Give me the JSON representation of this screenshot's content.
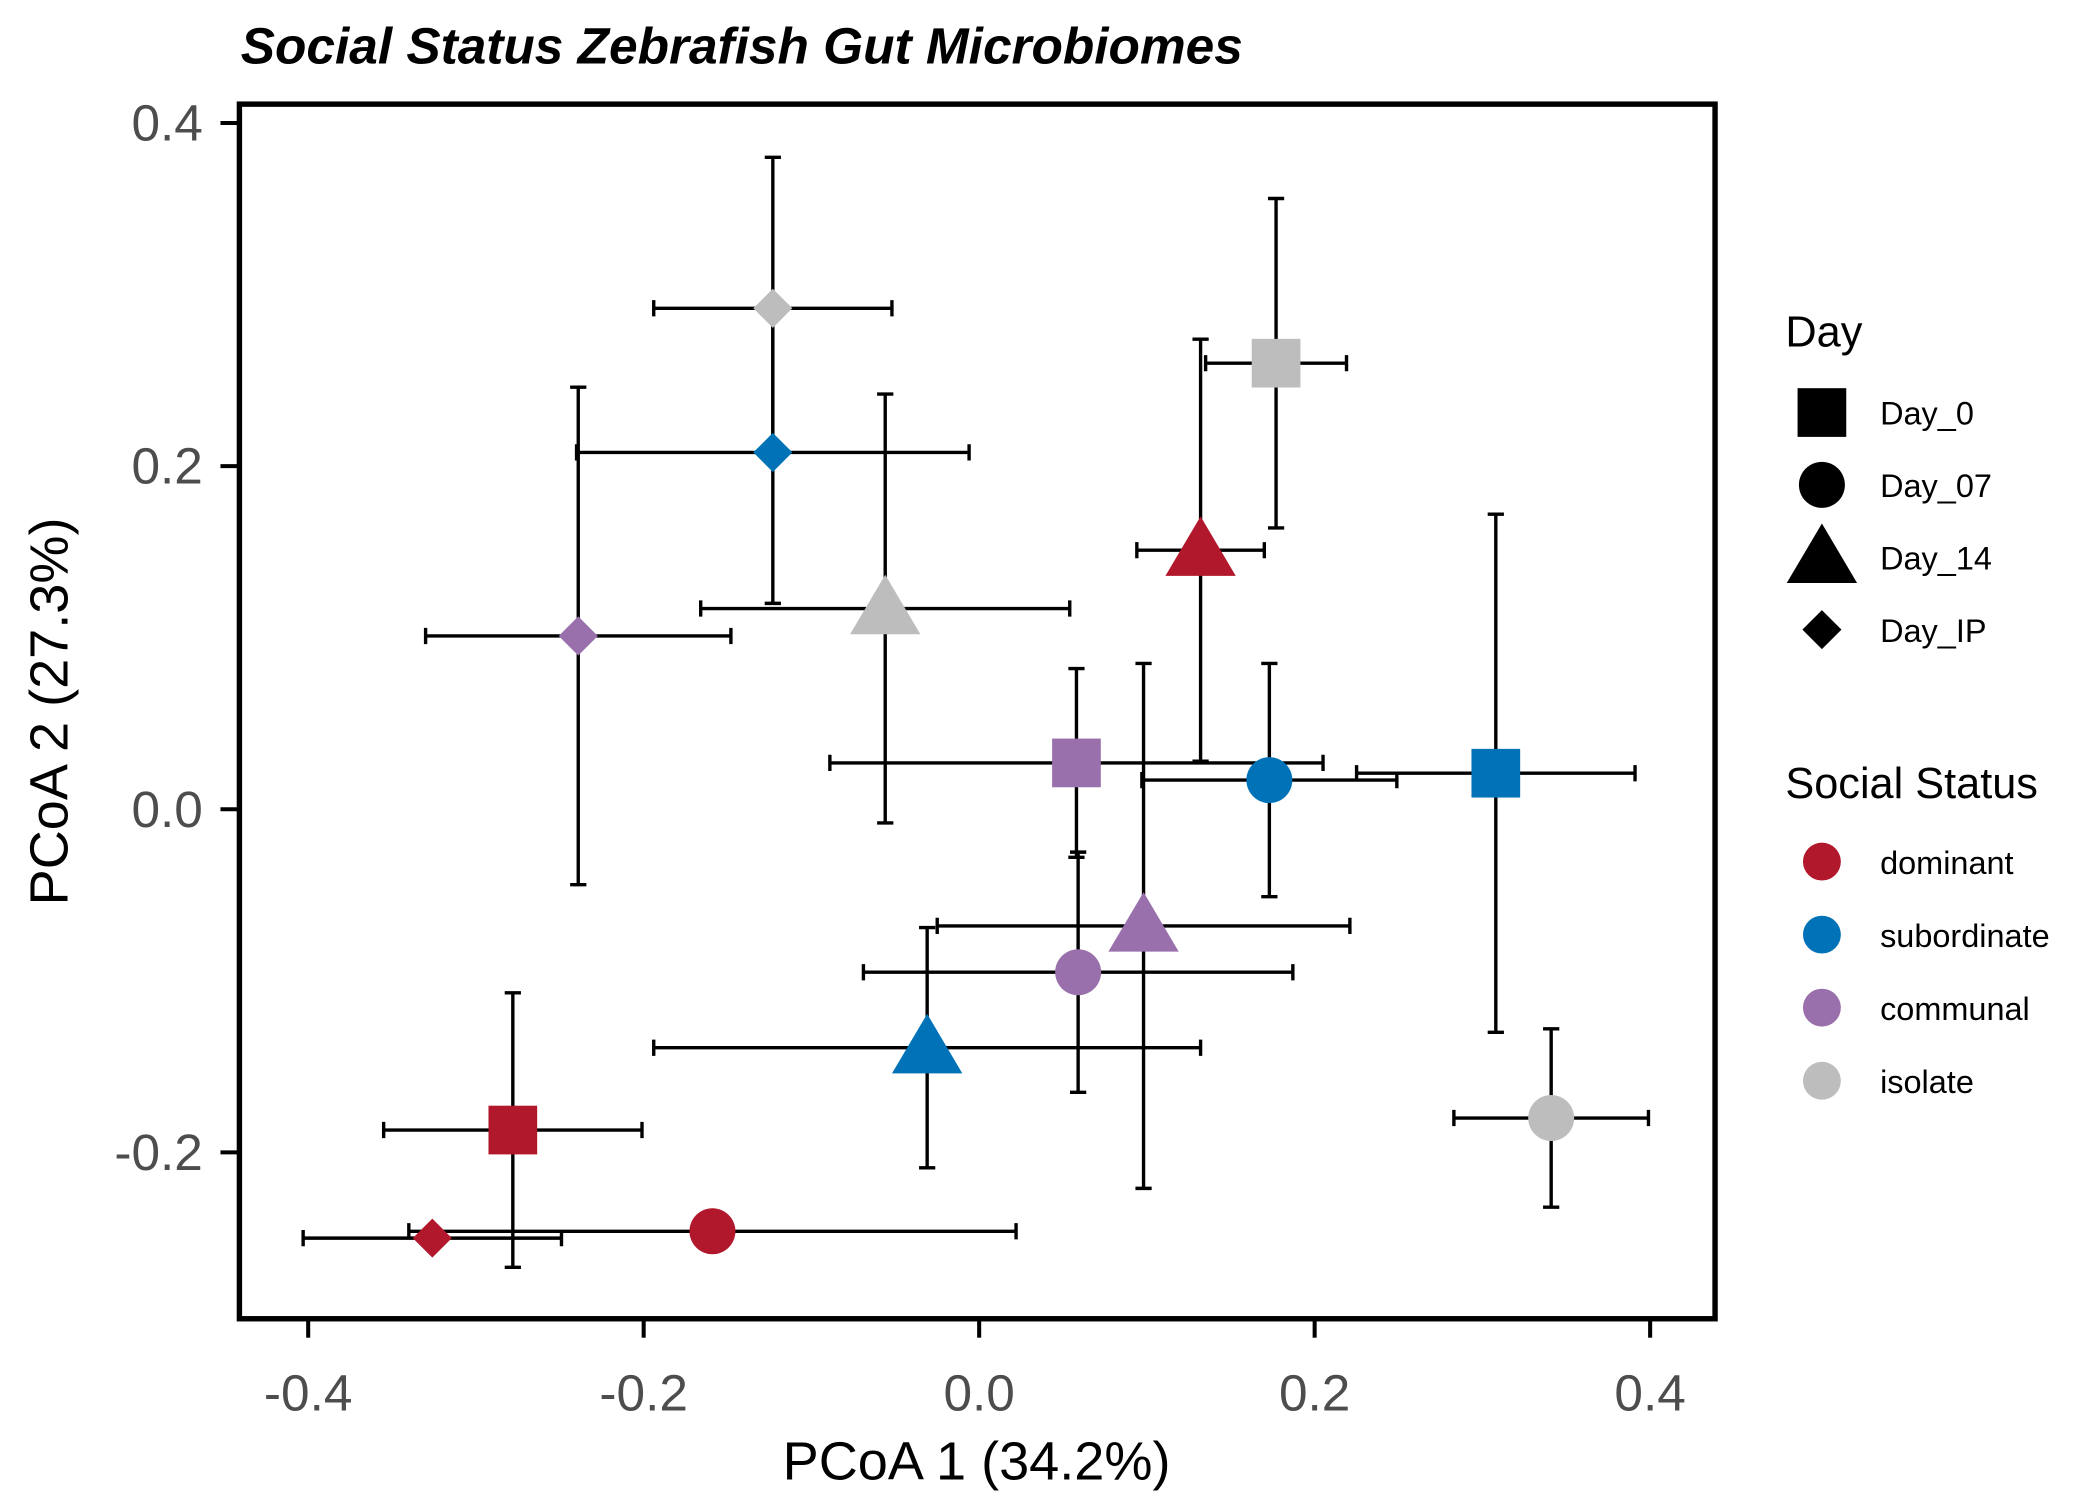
{
  "chart_data": {
    "type": "scatter",
    "title": "Social Status Zebrafish Gut Microbiomes",
    "x_label": "PCoA 1 (34.2%)",
    "y_label": "PCoA 2 (27.3%)",
    "xlim": [
      -0.441,
      0.4387
    ],
    "ylim": [
      -0.297,
      0.411
    ],
    "xticks": [
      -0.4,
      -0.2,
      {
        "value": 0,
        "label": "0.0"
      },
      0.2,
      0.4
    ],
    "yticks": [
      -0.2,
      {
        "value": 0,
        "label": "0.0"
      },
      0.2,
      0.4
    ],
    "shape_legend_title": "Day",
    "color_legend_title": "Social Status",
    "days": [
      "Day_0",
      "Day_07",
      "Day_14",
      "Day_IP"
    ],
    "shapes": [
      "square",
      "circle",
      "triangle",
      "diamond"
    ],
    "series": [
      {
        "name": "dominant",
        "color": "#b2182b",
        "x": [
          -0.278,
          -0.159,
          0.132,
          -0.326
        ],
        "values": [
          -0.187,
          -0.246,
          0.151,
          -0.25
        ],
        "xerr": [
          0.077,
          0.181,
          0.038,
          0.077
        ],
        "yerr": [
          0.08,
          0.01,
          0.123,
          0.005
        ]
      },
      {
        "name": "subordinate",
        "color": "#0072b8",
        "x": [
          0.308,
          0.173,
          -0.031,
          -0.123
        ],
        "values": [
          0.021,
          0.017,
          -0.139,
          0.208
        ],
        "xerr": [
          0.083,
          0.076,
          0.163,
          0.117
        ],
        "yerr": [
          0.151,
          0.068,
          0.07,
          0.088
        ]
      },
      {
        "name": "communal",
        "color": "#9970ab",
        "x": [
          0.058,
          0.059,
          0.098,
          -0.239
        ],
        "values": [
          0.027,
          -0.095,
          -0.068,
          0.101
        ],
        "xerr": [
          0.147,
          0.128,
          0.123,
          0.091
        ],
        "yerr": [
          0.055,
          0.07,
          0.153,
          0.145
        ]
      },
      {
        "name": "isolate",
        "color": "#bdbdbd",
        "x": [
          0.177,
          0.341,
          -0.056,
          -0.123
        ],
        "values": [
          0.26,
          -0.18,
          0.117,
          0.292
        ],
        "xerr": [
          0.042,
          0.058,
          0.11,
          0.071
        ],
        "yerr": [
          0.096,
          0.052,
          0.125,
          0.088
        ]
      }
    ]
  }
}
